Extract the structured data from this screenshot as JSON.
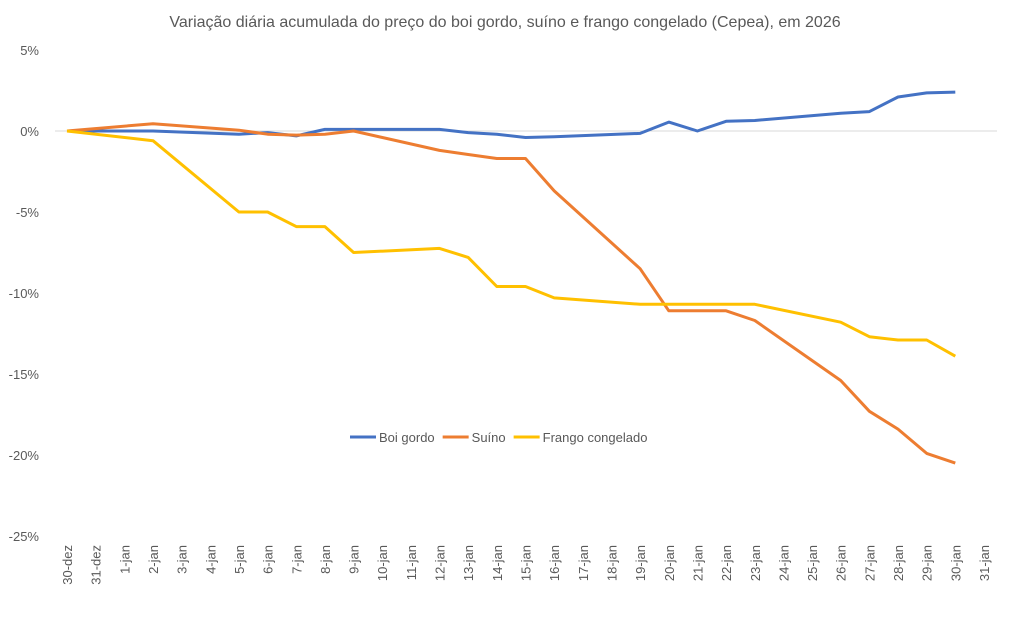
{
  "chart_data": {
    "type": "line",
    "title": "Variação diária acumulada do preço do boi gordo, suíno e frango congelado (Cepea), em 2026",
    "xlabel": "",
    "ylabel": "",
    "categories": [
      "30-dez",
      "31-dez",
      "1-jan",
      "2-jan",
      "3-jan",
      "4-jan",
      "5-jan",
      "6-jan",
      "7-jan",
      "8-jan",
      "9-jan",
      "10-jan",
      "11-jan",
      "12-jan",
      "13-jan",
      "14-jan",
      "15-jan",
      "16-jan",
      "17-jan",
      "18-jan",
      "19-jan",
      "20-jan",
      "21-jan",
      "22-jan",
      "23-jan",
      "24-jan",
      "25-jan",
      "26-jan",
      "27-jan",
      "28-jan",
      "29-jan",
      "30-jan",
      "31-jan"
    ],
    "ylim": [
      -25,
      5
    ],
    "yticks": [
      5,
      0,
      -5,
      -10,
      -15,
      -20,
      -25
    ],
    "ytick_labels": [
      "5%",
      "0%",
      "-5%",
      "-10%",
      "-15%",
      "-20%",
      "-25%"
    ],
    "grid": "zero line only",
    "legend_position": "center",
    "series": [
      {
        "name": "Boi gordo",
        "color": "#4472C4",
        "values": [
          0,
          null,
          null,
          0.0,
          null,
          null,
          -0.2,
          -0.1,
          -0.3,
          0.1,
          0.1,
          null,
          null,
          0.1,
          -0.1,
          -0.2,
          -0.4,
          -0.35,
          null,
          null,
          -0.15,
          0.55,
          0.0,
          0.6,
          0.65,
          null,
          null,
          1.1,
          1.2,
          2.1,
          2.35,
          2.4,
          null
        ]
      },
      {
        "name": "Suíno",
        "color": "#ED7D31",
        "values": [
          0,
          null,
          null,
          0.45,
          null,
          null,
          0.05,
          -0.2,
          -0.25,
          -0.2,
          0.0,
          null,
          null,
          -1.2,
          -1.45,
          -1.7,
          -1.7,
          -3.7,
          null,
          null,
          -8.5,
          -11.1,
          -11.1,
          -11.1,
          -11.7,
          null,
          null,
          -15.4,
          -17.3,
          -18.4,
          -19.9,
          -20.5,
          null
        ]
      },
      {
        "name": "Frango congelado",
        "color": "#FFC000",
        "values": [
          0,
          null,
          null,
          -0.6,
          null,
          null,
          -5.0,
          -5.0,
          -5.9,
          -5.9,
          -7.5,
          null,
          null,
          -7.25,
          -7.8,
          -9.6,
          -9.6,
          -10.3,
          null,
          null,
          -10.7,
          -10.7,
          -10.7,
          -10.7,
          -10.7,
          null,
          null,
          -11.8,
          -12.7,
          -12.9,
          -12.9,
          -13.9,
          null
        ]
      }
    ]
  }
}
